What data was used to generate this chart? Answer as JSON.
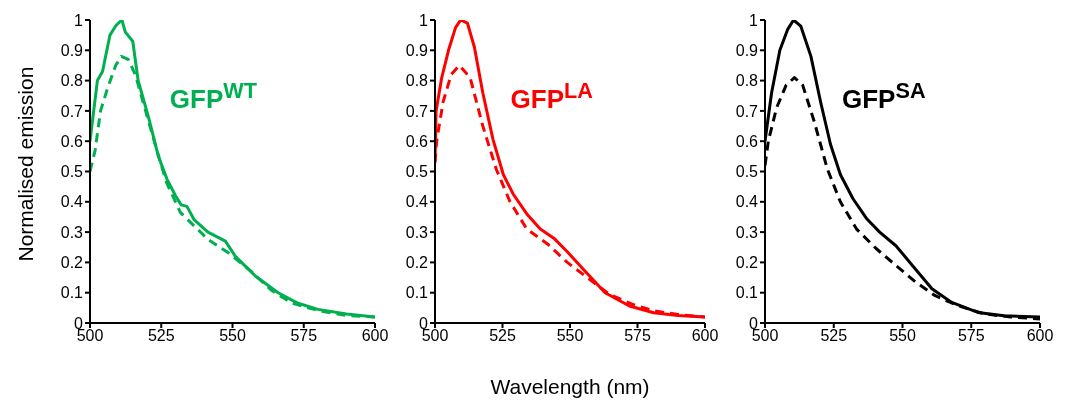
{
  "chart_data": [
    {
      "type": "line",
      "title": "GFP$^{WT}$",
      "ylabel": "Normalised emission",
      "xlim": [
        500,
        600
      ],
      "xticks": [
        500,
        525,
        550,
        575,
        600
      ],
      "ylim": [
        0,
        1
      ],
      "yticks": [
        0,
        0.1,
        0.2,
        0.3,
        0.4,
        0.5,
        0.6,
        0.7,
        0.8,
        0.9,
        1
      ],
      "grid": false,
      "legend": false,
      "marker": "none",
      "series": [
        {
          "color": "#00b050",
          "line_style": "solid",
          "x": [
            500,
            502.6,
            504.4,
            507,
            509,
            510,
            511.2,
            512.4,
            515,
            516.9,
            520.5,
            524,
            527,
            530,
            532,
            534,
            536.6,
            541.4,
            547.5,
            551,
            558,
            566,
            573,
            580,
            590,
            600
          ],
          "values": [
            0.6,
            0.8,
            0.83,
            0.95,
            0.98,
            0.99,
            1.0,
            0.96,
            0.93,
            0.8,
            0.68,
            0.55,
            0.475,
            0.42,
            0.39,
            0.385,
            0.34,
            0.3,
            0.27,
            0.22,
            0.155,
            0.1,
            0.065,
            0.045,
            0.03,
            0.02
          ]
        },
        {
          "color": "#00b050",
          "line_style": "dashed",
          "x": [
            500,
            501.8,
            503.7,
            506,
            509,
            511,
            513.4,
            515.9,
            519.5,
            523,
            526.8,
            531.7,
            536.6,
            541.5,
            548.8,
            556,
            563.4,
            570.7,
            580.5,
            590,
            600
          ],
          "values": [
            0.5,
            0.57,
            0.7,
            0.77,
            0.85,
            0.88,
            0.87,
            0.82,
            0.7,
            0.585,
            0.465,
            0.365,
            0.32,
            0.275,
            0.23,
            0.175,
            0.11,
            0.066,
            0.04,
            0.025,
            0.02
          ]
        }
      ]
    },
    {
      "type": "line",
      "title": "GFP$^{LA}$",
      "xlabel": "Wavelength (nm)",
      "xlim": [
        500,
        600
      ],
      "xticks": [
        500,
        525,
        550,
        575,
        600
      ],
      "ylim": [
        0,
        1
      ],
      "yticks": [
        0,
        0.1,
        0.2,
        0.3,
        0.4,
        0.5,
        0.6,
        0.7,
        0.8,
        0.9,
        1
      ],
      "grid": false,
      "legend": false,
      "marker": "none",
      "series": [
        {
          "color": "#ff0000",
          "line_style": "solid",
          "x": [
            500,
            500.4,
            502.5,
            505,
            507.6,
            509.5,
            512,
            514.6,
            517.7,
            521.5,
            525.3,
            529,
            534,
            539,
            544,
            549,
            555.7,
            563,
            572,
            581,
            590,
            600
          ],
          "values": [
            0.53,
            0.7,
            0.81,
            0.9,
            0.975,
            1.0,
            0.99,
            0.91,
            0.76,
            0.605,
            0.49,
            0.425,
            0.36,
            0.31,
            0.28,
            0.235,
            0.17,
            0.1,
            0.056,
            0.034,
            0.025,
            0.02
          ]
        },
        {
          "color": "#ff0000",
          "line_style": "dashed",
          "x": [
            500,
            500.6,
            503,
            506,
            509,
            513,
            517.7,
            522.8,
            527.8,
            534,
            541.8,
            549,
            557,
            564.5,
            573,
            581,
            590,
            600
          ],
          "values": [
            0.53,
            0.6,
            0.73,
            0.82,
            0.85,
            0.81,
            0.65,
            0.505,
            0.4,
            0.31,
            0.26,
            0.2,
            0.146,
            0.095,
            0.062,
            0.04,
            0.028,
            0.02
          ]
        }
      ]
    },
    {
      "type": "line",
      "title": "GFP$^{SA}$",
      "xlim": [
        500,
        600
      ],
      "xticks": [
        500,
        525,
        550,
        575,
        600
      ],
      "ylim": [
        0,
        1
      ],
      "yticks": [
        0,
        0.1,
        0.2,
        0.3,
        0.4,
        0.5,
        0.6,
        0.7,
        0.8,
        0.9,
        1
      ],
      "grid": false,
      "legend": false,
      "marker": "none",
      "series": [
        {
          "color": "#000000",
          "line_style": "solid",
          "x": [
            500,
            502.4,
            505.4,
            508.3,
            510.4,
            513,
            516.7,
            520.2,
            523.8,
            527.4,
            532,
            536.9,
            541.7,
            547.6,
            553.6,
            560.7,
            567.9,
            577.4,
            586.9,
            600
          ],
          "values": [
            0.6,
            0.76,
            0.9,
            0.97,
            1.0,
            0.98,
            0.88,
            0.73,
            0.59,
            0.49,
            0.41,
            0.345,
            0.3,
            0.255,
            0.19,
            0.113,
            0.068,
            0.035,
            0.024,
            0.02
          ]
        },
        {
          "color": "#000000",
          "line_style": "dashed",
          "x": [
            500,
            501.2,
            504.2,
            507.7,
            510.7,
            513.7,
            517.9,
            522.6,
            527.4,
            533.3,
            540.5,
            547.6,
            554.8,
            561.9,
            570.2,
            579.8,
            589.3,
            600
          ],
          "values": [
            0.52,
            0.6,
            0.71,
            0.785,
            0.81,
            0.785,
            0.665,
            0.51,
            0.4,
            0.31,
            0.245,
            0.19,
            0.135,
            0.09,
            0.057,
            0.03,
            0.02,
            0.013
          ]
        }
      ]
    }
  ]
}
